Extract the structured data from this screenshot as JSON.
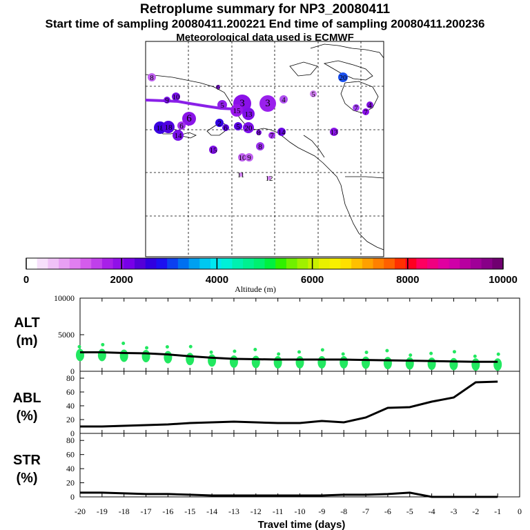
{
  "header": {
    "title": "Retroplume summary for NP3_20080411",
    "sampling": "Start time of sampling 20080411.200221     End time of sampling 20080411.200236",
    "meteo": "Meteorological data used is ECMWF"
  },
  "chart_data": {
    "type": "line",
    "map": {
      "description": "retroplume cluster centroids by day, colored by altitude",
      "labels": [
        "1",
        "2",
        "3",
        "4",
        "5",
        "6",
        "7",
        "8",
        "9",
        "10",
        "11",
        "12",
        "13",
        "14",
        "15",
        "16",
        "17",
        "18",
        "19",
        "20"
      ]
    },
    "colorbar": {
      "label": "Altitude (m)",
      "ticks": [
        "0",
        "2000",
        "4000",
        "6000",
        "8000",
        "10000"
      ],
      "range": [
        0,
        10000
      ],
      "colors": [
        "#ffffff",
        "#f7e0fb",
        "#f0c2f7",
        "#e8a0f3",
        "#e07ef0",
        "#d45cec",
        "#c040ea",
        "#a820e8",
        "#9010e8",
        "#7800e8",
        "#5400d8",
        "#3000e0",
        "#1c10f0",
        "#0c40f0",
        "#0070f0",
        "#00a0f0",
        "#00c8f0",
        "#00e8f0",
        "#00f0d8",
        "#00f0b0",
        "#00f090",
        "#00f070",
        "#00f040",
        "#30f000",
        "#70f000",
        "#a0f000",
        "#c8f000",
        "#e8f000",
        "#f8f000",
        "#ffe000",
        "#ffc000",
        "#ffa000",
        "#ff8000",
        "#ff6000",
        "#ff3000",
        "#ff0020",
        "#ff0060",
        "#f00080",
        "#e000a0",
        "#d000a8",
        "#b800a0",
        "#a00098",
        "#880088",
        "#700070"
      ]
    },
    "x": [
      -20,
      -19,
      -18,
      -17,
      -16,
      -15,
      -14,
      -13,
      -12,
      -11,
      -10,
      -9,
      -8,
      -7,
      -6,
      -5,
      -4,
      -3,
      -2,
      -1
    ],
    "xlabel": "Travel time (days)",
    "xticks": [
      "-20",
      "-19",
      "-18",
      "-17",
      "-16",
      "-15",
      "-14",
      "-13",
      "-12",
      "-11",
      "-10",
      "-9",
      "-8",
      "-7",
      "-6",
      "-5",
      "-4",
      "-3",
      "-2",
      "-1",
      "0"
    ],
    "panels": [
      {
        "name": "ALT",
        "unit": "(m)",
        "ylim": [
          0,
          10000
        ],
        "yticks": [
          "10000",
          "5000",
          "0"
        ],
        "series": [
          {
            "name": "mean altitude",
            "values": [
              2600,
              2600,
              2500,
              2450,
              2300,
              2050,
              1850,
              1700,
              1650,
              1600,
              1600,
              1600,
              1600,
              1550,
              1500,
              1450,
              1400,
              1350,
              1300,
              1300
            ]
          }
        ],
        "cloud_color": "#22e860"
      },
      {
        "name": "ABL",
        "unit": "(%)",
        "ylim": [
          0,
          90
        ],
        "yticks": [
          "80",
          "60",
          "40",
          "20",
          "0"
        ],
        "series": [
          {
            "name": "ABL fraction",
            "values": [
              10,
              10,
              11,
              12,
              13,
              15,
              16,
              17,
              16,
              15,
              15,
              18,
              16,
              23,
              37,
              38,
              46,
              52,
              74,
              75
            ]
          }
        ]
      },
      {
        "name": "STR",
        "unit": "(%)",
        "ylim": [
          0,
          90
        ],
        "yticks": [
          "80",
          "60",
          "40",
          "20",
          "0"
        ],
        "series": [
          {
            "name": "stratospheric fraction",
            "values": [
              6,
              6,
              5,
              4,
              4,
              3,
              2,
              2,
              2,
              2,
              2,
              2,
              3,
              3,
              4,
              6,
              0,
              0,
              0,
              0
            ]
          }
        ]
      }
    ]
  }
}
